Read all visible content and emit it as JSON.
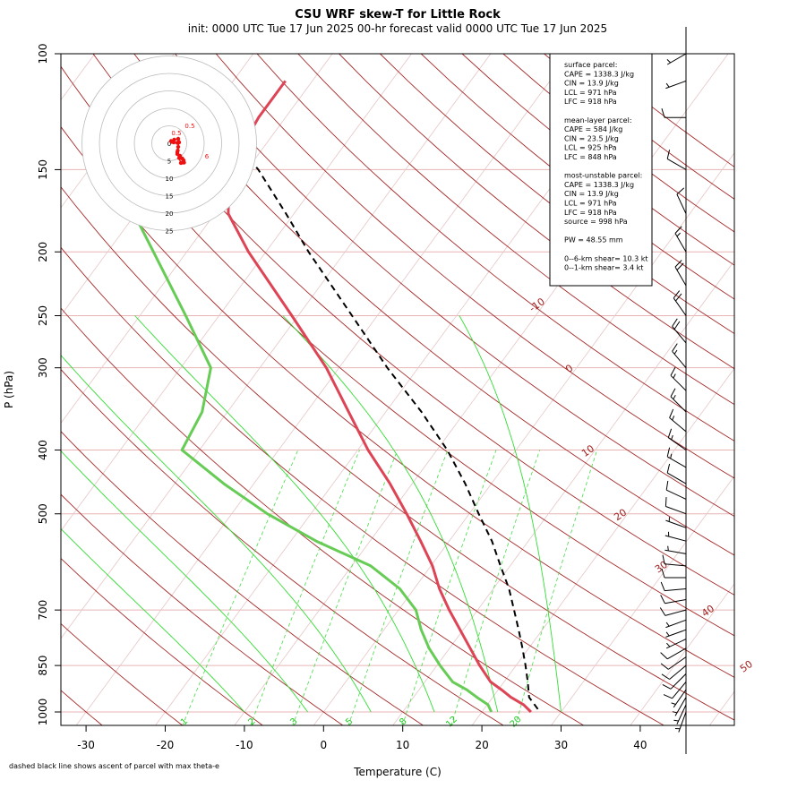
{
  "chart_data": {
    "type": "line",
    "title": "CSU WRF skew-T for Little Rock",
    "subtitle": "init: 0000 UTC Tue 17 Jun 2025     00-hr forecast valid 0000 UTC Tue 17 Jun 2025",
    "xlabel": "Temperature (C)",
    "ylabel": "P (hPa)",
    "footnote": "dashed black line shows ascent of parcel with max theta-e",
    "x_ticks": [
      "-30",
      "-20",
      "-10",
      "0",
      "10",
      "20",
      "30",
      "40"
    ],
    "y_ticks": [
      "100",
      "150",
      "200",
      "250",
      "300",
      "400",
      "500",
      "700",
      "850",
      "1000"
    ],
    "isotherm_labels": [
      "-10",
      "0",
      "10",
      "20",
      "30",
      "40",
      "50"
    ],
    "mixing_ratio_labels": [
      "1",
      "2",
      "3",
      "5",
      "8",
      "12",
      "20"
    ],
    "series": [
      {
        "name": "temperature",
        "color": "#dd4455",
        "p": [
          1000,
          975,
          950,
          925,
          900,
          850,
          800,
          750,
          700,
          650,
          600,
          550,
          500,
          450,
          400,
          350,
          300,
          250,
          200,
          175,
          150,
          125,
          110
        ],
        "t": [
          26.2,
          24.6,
          22.3,
          20.4,
          18.3,
          15.4,
          12.6,
          9.6,
          6.4,
          3.2,
          0.2,
          -3.6,
          -7.9,
          -12.8,
          -18.7,
          -24.7,
          -31.6,
          -40.8,
          -52.2,
          -58.3,
          -62.3,
          -63.4,
          -63.4
        ]
      },
      {
        "name": "dewpoint",
        "color": "#66cc55",
        "p": [
          1000,
          975,
          950,
          925,
          900,
          850,
          800,
          750,
          700,
          650,
          600,
          550,
          500,
          450,
          400,
          350,
          300,
          250,
          200,
          175,
          160
        ],
        "t": [
          21.2,
          20.1,
          18.0,
          16.0,
          13.5,
          10.4,
          7.4,
          4.7,
          2.2,
          -1.8,
          -7.6,
          -16.8,
          -25.5,
          -33.8,
          -42.2,
          -43.2,
          -46.2,
          -54.2,
          -64.2,
          -70.2,
          -74.2
        ]
      },
      {
        "name": "parcel",
        "color": "#000000",
        "p": [
          990,
          950,
          900,
          850,
          800,
          750,
          700,
          650,
          600,
          550,
          500,
          450,
          400,
          350,
          300,
          250,
          200,
          175,
          150,
          140
        ],
        "t": [
          26.8,
          24.6,
          23.0,
          21.2,
          19.2,
          17.0,
          14.6,
          12.0,
          8.8,
          5.4,
          1.2,
          -3.3,
          -8.7,
          -15.5,
          -23.9,
          -33.2,
          -44.6,
          -51.0,
          -58.6,
          -62.5
        ]
      }
    ],
    "info_box": [
      "surface parcel:",
      "CAPE = 1338.3 J/kg",
      "CIN = 13.9 J/kg",
      "LCL = 971 hPa",
      "LFC = 918 hPa",
      "",
      "mean-layer parcel:",
      "CAPE = 584 J/kg",
      "CIN = 23.5 J/kg",
      "LCL = 925 hPa",
      "LFC = 848 hPa",
      "",
      "most-unstable parcel:",
      "CAPE = 1338.3 J/kg",
      "CIN = 13.9 J/kg",
      "LCL = 971 hPa",
      "LFC = 918 hPa",
      "source = 998 hPa",
      "",
      "PW =  48.55 mm",
      "",
      "0--6-km shear= 10.3 kt",
      "0--1-km shear= 3.4 kt"
    ],
    "hodograph": {
      "ring_labels": [
        "0",
        "5",
        "10",
        "15",
        "20",
        "25"
      ],
      "point_labels": [
        "0.5",
        "0.5",
        "6"
      ],
      "u": [
        1.8,
        2.4,
        2.9,
        3.2,
        3.3,
        3.0,
        2.6,
        2.2,
        1.8,
        1.9,
        2.0,
        2.1,
        2.0,
        1.1,
        0.4,
        0.6,
        1.0,
        1.8,
        2.2
      ],
      "v": [
        -2.0,
        -2.8,
        -3.4,
        -3.8,
        -4.3,
        -4.3,
        -4.4,
        -3.3,
        -2.4,
        -1.6,
        -0.8,
        0.3,
        1.0,
        0.8,
        0.5,
        0.3,
        0.2,
        0.1,
        0.2
      ]
    },
    "wind_barbs": {
      "pressure": [
        1000,
        975,
        950,
        925,
        900,
        875,
        850,
        825,
        800,
        775,
        750,
        725,
        700,
        675,
        650,
        625,
        600,
        575,
        550,
        525,
        500,
        475,
        450,
        425,
        400,
        375,
        350,
        325,
        300,
        275,
        250,
        225,
        200,
        175,
        150,
        125,
        110,
        100
      ],
      "direction_deg": [
        200,
        205,
        210,
        215,
        220,
        225,
        230,
        235,
        240,
        245,
        250,
        250,
        255,
        260,
        265,
        270,
        275,
        280,
        285,
        290,
        290,
        295,
        300,
        300,
        305,
        310,
        315,
        315,
        320,
        320,
        325,
        330,
        330,
        335,
        300,
        270,
        250,
        240
      ],
      "speed_kt": [
        5,
        5,
        5,
        5,
        10,
        10,
        10,
        10,
        10,
        5,
        5,
        5,
        10,
        10,
        10,
        10,
        10,
        5,
        5,
        5,
        10,
        10,
        10,
        15,
        15,
        15,
        15,
        15,
        15,
        20,
        20,
        20,
        15,
        10,
        10,
        10,
        5,
        5
      ]
    }
  }
}
